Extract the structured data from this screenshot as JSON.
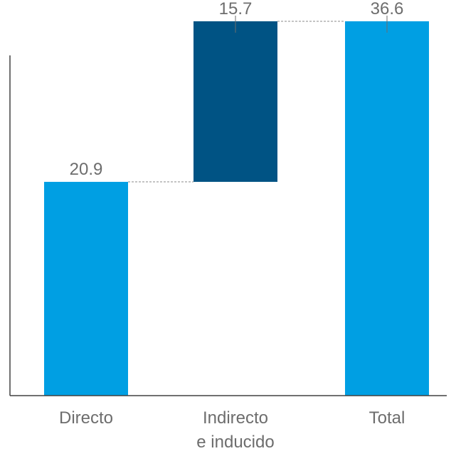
{
  "chart_data": {
    "type": "bar",
    "subtype": "waterfall",
    "categories": [
      [
        "Directo"
      ],
      [
        "Indirecto",
        "e inducido"
      ],
      [
        "Total"
      ]
    ],
    "values": [
      20.9,
      15.7,
      36.6
    ],
    "bases": [
      0,
      20.9,
      0
    ],
    "data_labels": [
      "20.9",
      "15.7",
      "36.6"
    ],
    "bar_colors": [
      "#009fe3",
      "#005384",
      "#009fe3"
    ],
    "axis_color": "#404040",
    "connector_color": "#8a8a8a",
    "grid": false,
    "legend": "none",
    "title": "",
    "xlabel": "",
    "ylabel": ""
  }
}
